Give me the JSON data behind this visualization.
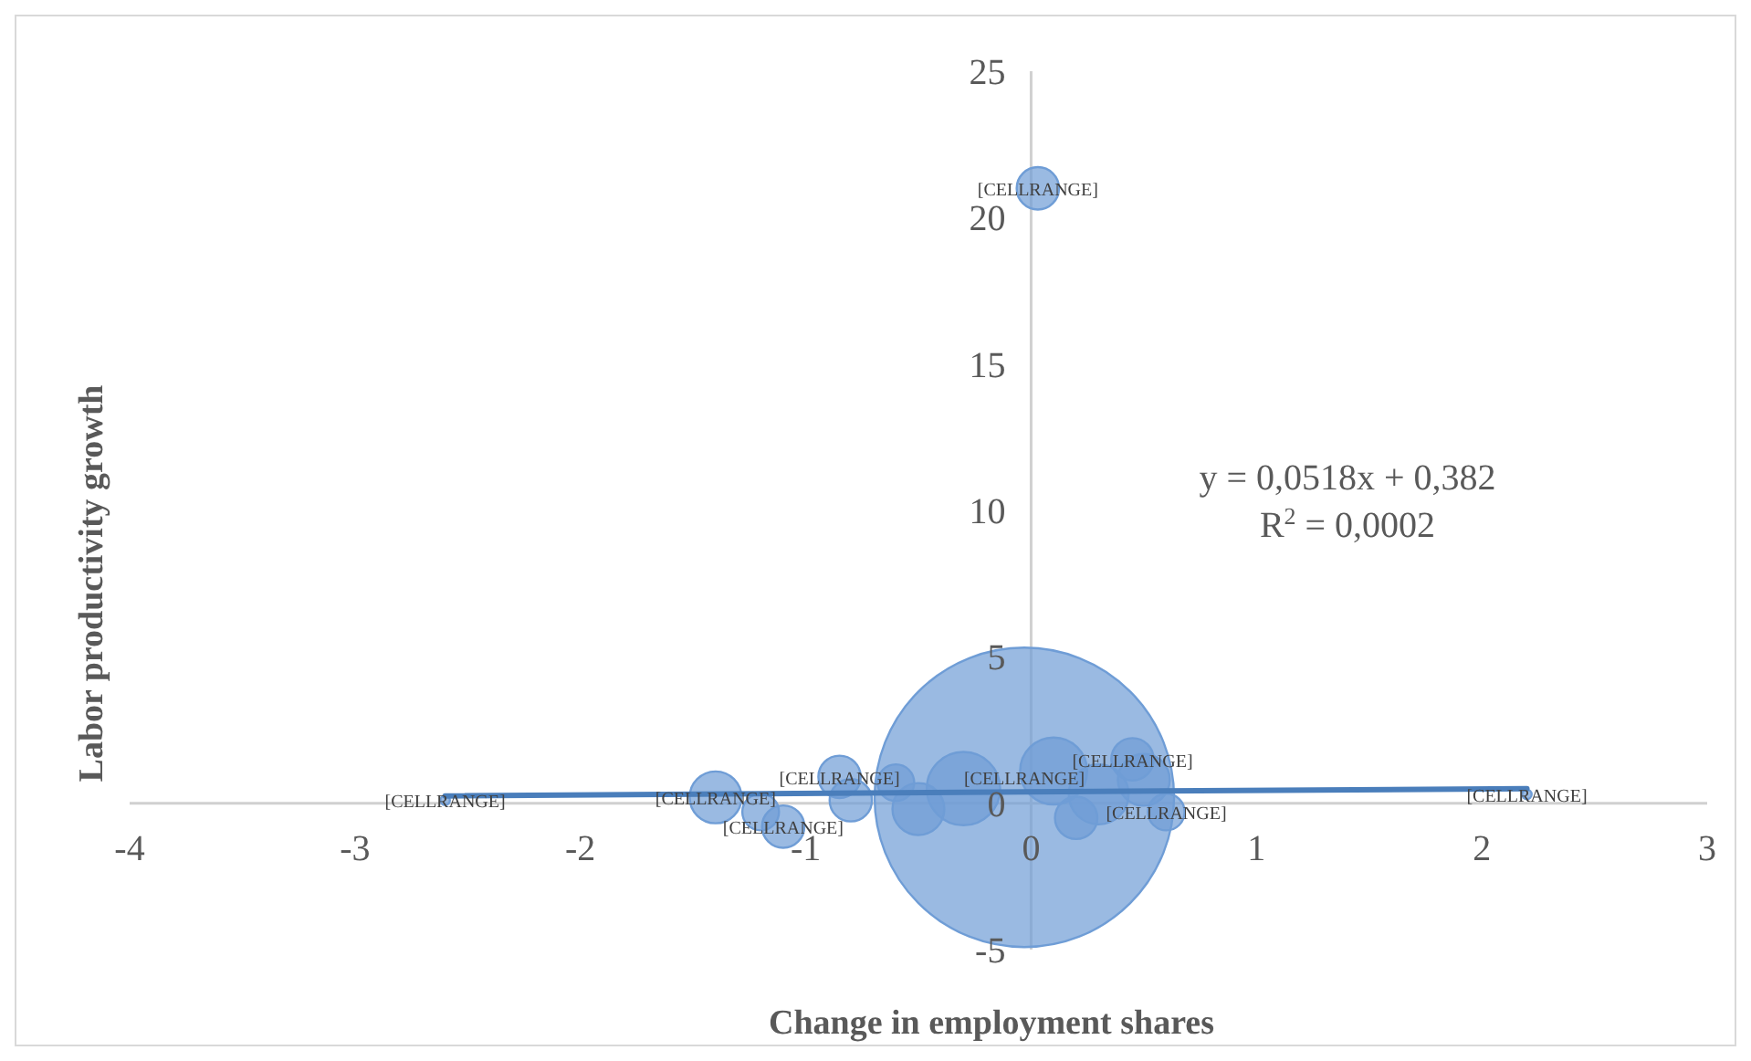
{
  "chart_data": {
    "type": "bubble",
    "xlabel": "Change in employment shares",
    "ylabel": "Labor productivity growth",
    "xlim": [
      -4,
      3
    ],
    "xticks": [
      -4,
      -3,
      -2,
      -1,
      0,
      1,
      2,
      3
    ],
    "ylim": [
      -5,
      25
    ],
    "yticks": [
      -5,
      0,
      5,
      10,
      15,
      20,
      25
    ],
    "grid": false,
    "series": [
      {
        "color": "#6f9dd6",
        "x": [
          0.03,
          -0.03,
          -1.4,
          -1.1,
          -0.85,
          -0.6,
          0.45,
          0.5,
          -2.6,
          2.2,
          -0.3,
          0.3,
          -1.2,
          0.6,
          -0.5,
          0.2,
          0.1,
          -0.8
        ],
        "values": [
          21,
          0.2,
          0.2,
          -0.8,
          0.9,
          0.7,
          1.5,
          0.8,
          0.1,
          0.3,
          0.5,
          0.3,
          -0.3,
          -0.3,
          -0.2,
          -0.5,
          1.1,
          0.1
        ],
        "sizes": [
          0.02,
          1,
          0.03,
          0.02,
          0.02,
          0.015,
          0.02,
          0.03,
          0.001,
          0.001,
          0.06,
          0.04,
          0.015,
          0.015,
          0.03,
          0.02,
          0.05,
          0.02
        ],
        "value_labels": [
          "[CELLRANGE]",
          "[CELLRANGE]",
          "[CELLRANGE]",
          "[CELLRANGE]",
          "[CELLRANGE]",
          null,
          "[CELLRANGE]",
          null,
          "[CELLRANGE]",
          "[CELLRANGE]",
          null,
          null,
          null,
          "[CELLRANGE]",
          null,
          null,
          null,
          null
        ]
      },
      {
        "type": "line",
        "color": "#4a7ebb",
        "x": [
          -2.6,
          2.2
        ],
        "values": [
          0.25,
          0.5
        ]
      }
    ],
    "annotations": [
      "y = 0,0518x + 0,382",
      "R$^{2}$ = 0,0002"
    ]
  }
}
